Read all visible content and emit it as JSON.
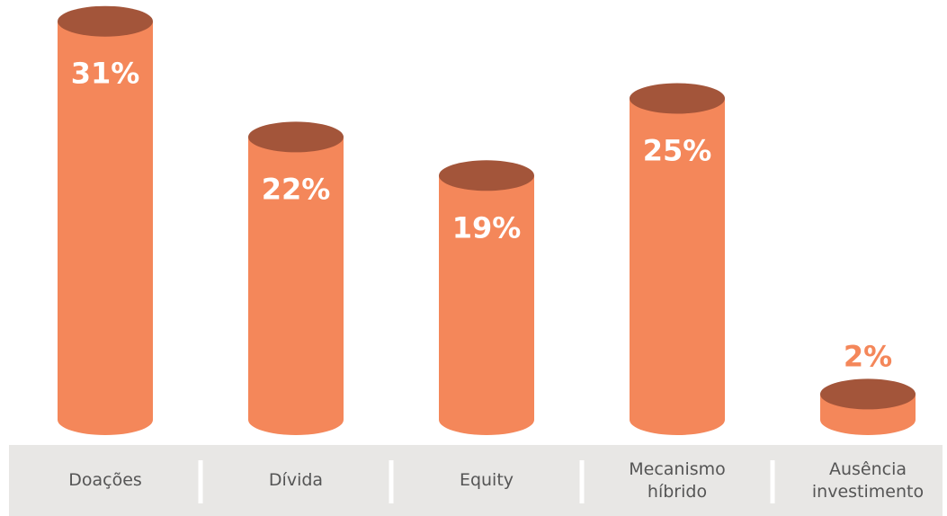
{
  "chart_data": {
    "type": "bar",
    "categories": [
      "Doações",
      "Dívida",
      "Equity",
      "Mecanismo híbrido",
      "Ausência investimento"
    ],
    "values": [
      31,
      22,
      19,
      25,
      2
    ],
    "value_labels": [
      "31%",
      "22%",
      "19%",
      "25%",
      "2%"
    ],
    "color": "#f4875a",
    "top_color": "#a3553a"
  }
}
